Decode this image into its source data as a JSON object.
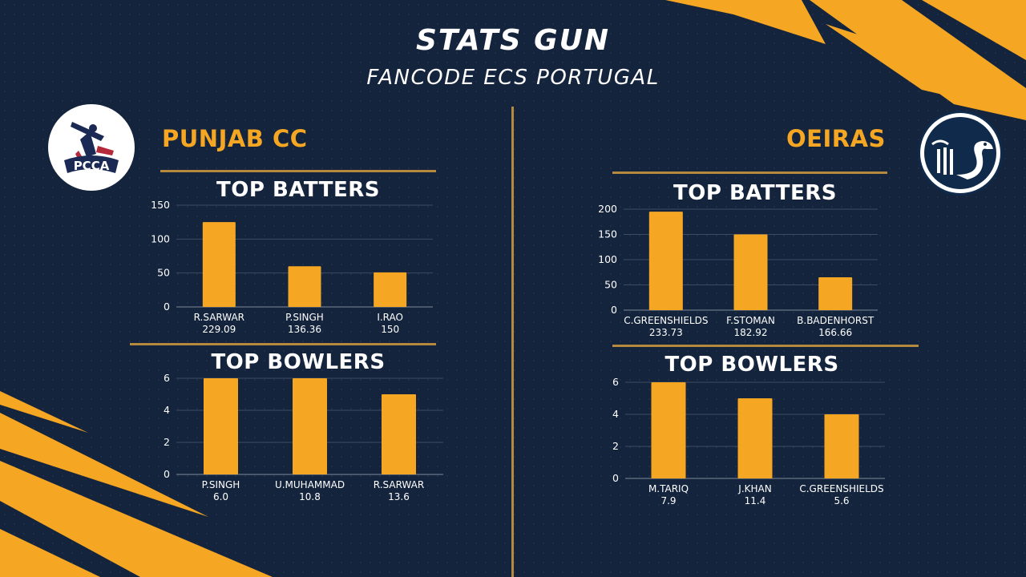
{
  "header": {
    "title": "STATS GUN",
    "subtitle": "FANCODE ECS PORTUGAL"
  },
  "colors": {
    "background": "#14243d",
    "accent": "#f5a623",
    "bar": "#f5a623",
    "divider": "#b58a3f"
  },
  "teams": [
    {
      "name": "PUNJAB CC",
      "logo": {
        "text": "PCCA",
        "icon": "pcca-logo-icon"
      },
      "batters_title": "TOP BATTERS",
      "bowlers_title": "TOP BOWLERS"
    },
    {
      "name": "OEIRAS",
      "logo": {
        "icon": "oeiras-swan-logo-icon"
      },
      "batters_title": "TOP BATTERS",
      "bowlers_title": "TOP BOWLERS"
    }
  ],
  "chart_data": [
    {
      "id": "left-batters",
      "type": "bar",
      "title": "TOP BATTERS",
      "categories": [
        "R.SARWAR",
        "P.SINGH",
        "I.RAO"
      ],
      "sublabels": [
        "229.09",
        "136.36",
        "150"
      ],
      "values": [
        125,
        60,
        51
      ],
      "ylim": [
        0,
        150
      ],
      "yticks": [
        0,
        50,
        100,
        150
      ],
      "grid": true
    },
    {
      "id": "left-bowlers",
      "type": "bar",
      "title": "TOP BOWLERS",
      "categories": [
        "P.SINGH",
        "U.MUHAMMAD",
        "R.SARWAR"
      ],
      "sublabels": [
        "6.0",
        "10.8",
        "13.6"
      ],
      "values": [
        6,
        6,
        5
      ],
      "ylim": [
        0,
        6
      ],
      "yticks": [
        0,
        2,
        4,
        6
      ],
      "grid": true
    },
    {
      "id": "right-batters",
      "type": "bar",
      "title": "TOP BATTERS",
      "categories": [
        "C.GREENSHIELDS",
        "F.STOMAN",
        "B.BADENHORST"
      ],
      "sublabels": [
        "233.73",
        "182.92",
        "166.66"
      ],
      "values": [
        195,
        150,
        65
      ],
      "ylim": [
        0,
        200
      ],
      "yticks": [
        0,
        50,
        100,
        150,
        200
      ],
      "grid": true
    },
    {
      "id": "right-bowlers",
      "type": "bar",
      "title": "TOP BOWLERS",
      "categories": [
        "M.TARIQ",
        "J.KHAN",
        "C.GREENSHIELDS"
      ],
      "sublabels": [
        "7.9",
        "11.4",
        "5.6"
      ],
      "values": [
        6,
        5,
        4
      ],
      "ylim": [
        0,
        6
      ],
      "yticks": [
        0,
        2,
        4,
        6
      ],
      "grid": true
    }
  ]
}
